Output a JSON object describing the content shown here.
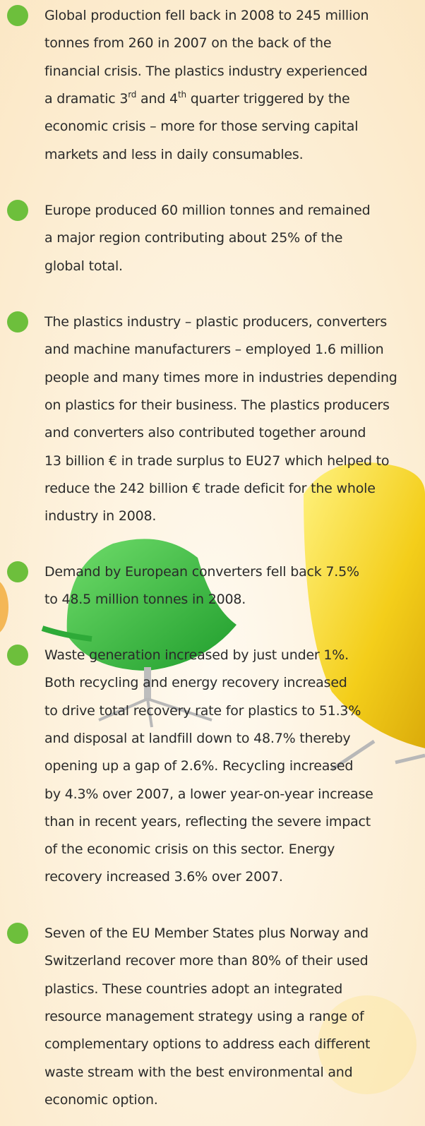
{
  "bullets": [
    {
      "lines": [
        "Global production fell back in 2008 to 245 million",
        "tonnes from 260 in 2007 on the back of the",
        "financial crisis. The plastics industry experienced",
        [
          "a dramatic 3",
          "rd",
          " and 4",
          "th",
          " quarter triggered by the"
        ],
        "economic crisis – more for those serving capital",
        "markets and less in daily consumables."
      ]
    },
    {
      "lines": [
        "Europe produced 60 million tonnes and remained",
        "a major region contributing about 25% of the",
        "global total."
      ]
    },
    {
      "lines": [
        "The plastics industry – plastic producers, converters",
        "and machine manufacturers – employed 1.6 million",
        "people and many times more in industries depending",
        "on plastics for their business. The plastics producers",
        "and converters also contributed together around",
        "13 billion € in trade surplus to EU27 which helped to",
        "reduce the 242 billion € trade deficit for the whole",
        "industry in 2008."
      ]
    },
    {
      "lines": [
        "Demand by European converters fell back 7.5%",
        "to 48.5 million tonnes in 2008."
      ]
    },
    {
      "lines": [
        "Waste generation increased by just under 1%.",
        "Both recycling and energy recovery increased",
        "to drive total recovery rate for plastics to 51.3%",
        "and disposal at landfill down to 48.7% thereby",
        "opening up a gap of 2.6%. Recycling increased",
        "by 4.3% over 2007, a lower year-on-year increase",
        "than in recent years, reflecting the severe impact",
        "of the economic crisis on this sector. Energy",
        "recovery increased 3.6% over 2007."
      ]
    },
    {
      "lines": [
        "Seven of the EU Member States plus Norway and",
        "Switzerland recover more than 80% of their used",
        "plastics. These countries adopt an integrated",
        "resource management strategy using a range of",
        "complementary options to address each different",
        "waste stream with the best environmental and",
        "economic option."
      ]
    }
  ]
}
